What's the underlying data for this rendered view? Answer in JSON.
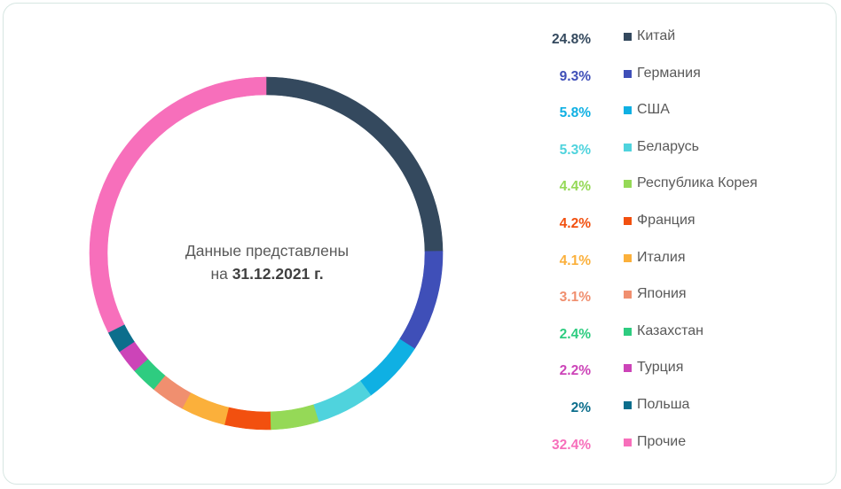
{
  "chart_data": {
    "type": "pie",
    "variant": "donut",
    "center_label": {
      "line1": "Данные представлены",
      "line2_prefix": "на ",
      "line2_date": "31.12.2021 г."
    },
    "categories": [
      "Китай",
      "Германия",
      "США",
      "Беларусь",
      "Республика Корея",
      "Франция",
      "Италия",
      "Япония",
      "Казахстан",
      "Турция",
      "Польша",
      "Прочие"
    ],
    "values": [
      24.8,
      9.3,
      5.8,
      5.3,
      4.4,
      4.2,
      4.1,
      3.1,
      2.4,
      2.2,
      2.0,
      32.4
    ],
    "value_labels": [
      "24.8%",
      "9.3%",
      "5.8%",
      "5.3%",
      "4.4%",
      "4.2%",
      "4.1%",
      "3.1%",
      "2.4%",
      "2.2%",
      "2%",
      "32.4%"
    ],
    "colors": [
      "#34495e",
      "#3f4fb8",
      "#0fb0e3",
      "#4fd3dd",
      "#95d957",
      "#f2500f",
      "#fbb03b",
      "#f08f6f",
      "#2ecc80",
      "#cc44b8",
      "#0c6e8c",
      "#f76fbb"
    ],
    "legend_position": "right"
  }
}
